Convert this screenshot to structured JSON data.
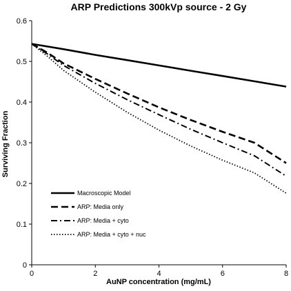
{
  "chart_data": {
    "type": "line",
    "title": "ARP Predictions 300kVp source - 2 Gy",
    "xlabel": "AuNP concentration (mg/mL)",
    "ylabel": "Surviving Fraction",
    "xlim": [
      0,
      8
    ],
    "ylim": [
      0,
      0.6
    ],
    "x_ticks": [
      "0",
      "2",
      "4",
      "6",
      "8"
    ],
    "y_ticks": [
      "0",
      "0.1",
      "0.2",
      "0.3",
      "0.4",
      "0.5",
      "0.6"
    ],
    "grid": false,
    "legend_position": "bottom-left",
    "series": [
      {
        "name": "Macroscopic Model",
        "style": "solid",
        "x": [
          0,
          1,
          2,
          3,
          4,
          5,
          6,
          7,
          8
        ],
        "y": [
          0.543,
          0.53,
          0.516,
          0.503,
          0.49,
          0.477,
          0.464,
          0.451,
          0.438
        ]
      },
      {
        "name": "ARP: Media only",
        "style": "dashed",
        "x": [
          0,
          0.5,
          1,
          2,
          3,
          4,
          5,
          6,
          7,
          8
        ],
        "y": [
          0.543,
          0.521,
          0.495,
          0.457,
          0.421,
          0.387,
          0.356,
          0.327,
          0.3,
          0.25
        ]
      },
      {
        "name": "ARP: Media + cyto",
        "style": "dashdot",
        "x": [
          0,
          0.5,
          1,
          2,
          3,
          4,
          5,
          6,
          7,
          8
        ],
        "y": [
          0.543,
          0.518,
          0.49,
          0.446,
          0.406,
          0.369,
          0.333,
          0.3,
          0.268,
          0.218
        ]
      },
      {
        "name": "ARP: Media + cyto + nuc",
        "style": "dotted",
        "x": [
          0,
          0.5,
          1,
          2,
          3,
          4,
          5,
          6,
          7,
          8
        ],
        "y": [
          0.543,
          0.512,
          0.478,
          0.424,
          0.375,
          0.331,
          0.292,
          0.257,
          0.226,
          0.176
        ]
      }
    ]
  }
}
